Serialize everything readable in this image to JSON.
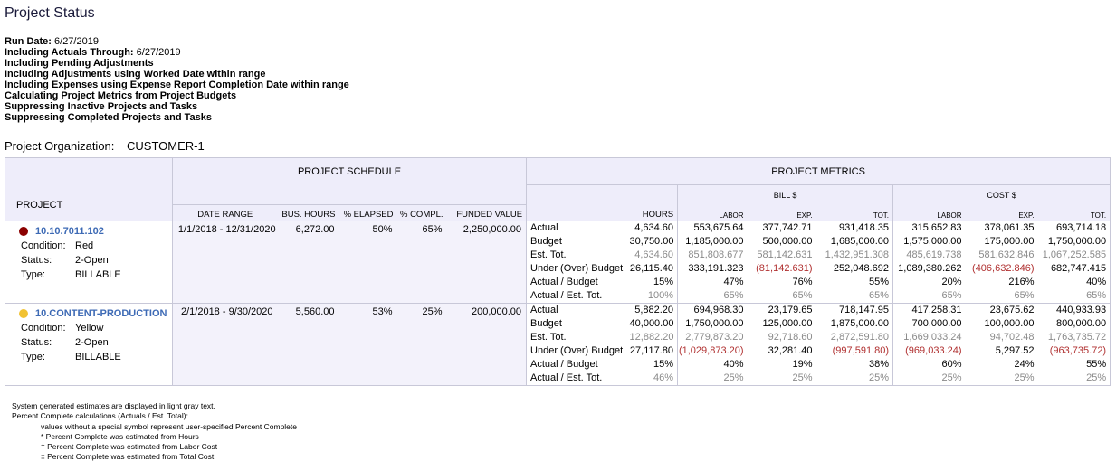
{
  "title": "Project Status",
  "params": [
    {
      "label": "Run Date:",
      "value": "6/27/2019"
    },
    {
      "label": "Including Actuals Through:",
      "value": "6/27/2019"
    },
    {
      "label": "Including Pending Adjustments",
      "value": ""
    },
    {
      "label": "Including Adjustments using Worked Date within range",
      "value": ""
    },
    {
      "label": "Including Expenses using Expense Report Completion Date within range",
      "value": ""
    },
    {
      "label": "Calculating Project Metrics from Project Budgets",
      "value": ""
    },
    {
      "label": "Suppressing Inactive Projects and Tasks",
      "value": ""
    },
    {
      "label": "Suppressing Completed Projects and Tasks",
      "value": ""
    }
  ],
  "org": {
    "label": "Project Organization:",
    "value": "CUSTOMER-1"
  },
  "headers": {
    "project": "PROJECT",
    "schedule": "PROJECT SCHEDULE",
    "metrics": "PROJECT METRICS",
    "bill": "BILL $",
    "cost": "COST $",
    "date_range": "DATE RANGE",
    "bus_hours": "BUS. HOURS",
    "pct_elapsed": "% ELAPSED",
    "pct_compl": "% COMPL.",
    "funded_value": "FUNDED VALUE",
    "hours": "HOURS",
    "labor": "LABOR",
    "exp": "EXP.",
    "tot": "TOT."
  },
  "metric_labels": [
    "Actual",
    "Budget",
    "Est. Tot.",
    "Under (Over) Budget",
    "Actual / Budget",
    "Actual / Est. Tot."
  ],
  "projects": [
    {
      "id": "10.10.7011.102",
      "status_color": "#8b0000",
      "fields": [
        {
          "k": "Condition:",
          "v": "Red"
        },
        {
          "k": "Status:",
          "v": "2-Open"
        },
        {
          "k": "Type:",
          "v": "BILLABLE"
        }
      ],
      "date_range": "1/1/2018 - 12/31/2020",
      "bus_hours": "6,272.00",
      "pct_elapsed": "50%",
      "pct_compl": "65%",
      "funded_value": "2,250,000.00",
      "hours": [
        "4,634.60",
        "30,750.00",
        "4,634.60",
        "26,115.40",
        "15%",
        "100%"
      ],
      "bill_labor": [
        "553,675.64",
        "1,185,000.00",
        "851,808.677",
        "333,191.323",
        "47%",
        "65%"
      ],
      "bill_exp": [
        "377,742.71",
        "500,000.00",
        "581,142.631",
        "(81,142.631)",
        "76%",
        "65%"
      ],
      "bill_tot": [
        "931,418.35",
        "1,685,000.00",
        "1,432,951.308",
        "252,048.692",
        "55%",
        "65%"
      ],
      "cost_labor": [
        "315,652.83",
        "1,575,000.00",
        "485,619.738",
        "1,089,380.262",
        "20%",
        "65%"
      ],
      "cost_exp": [
        "378,061.35",
        "175,000.00",
        "581,632.846",
        "(406,632.846)",
        "216%",
        "65%"
      ],
      "cost_tot": [
        "693,714.18",
        "1,750,000.00",
        "1,067,252.585",
        "682,747.415",
        "40%",
        "65%"
      ],
      "gray": {
        "hours": [
          2,
          5
        ],
        "bill_labor": [
          2,
          5
        ],
        "bill_exp": [
          2,
          5
        ],
        "bill_tot": [
          2,
          5
        ],
        "cost_labor": [
          2,
          5
        ],
        "cost_exp": [
          2,
          5
        ],
        "cost_tot": [
          2,
          5
        ]
      },
      "neg": {
        "bill_exp": [
          3
        ],
        "cost_exp": [
          3
        ]
      }
    },
    {
      "id": "10.CONTENT-PRODUCTION",
      "status_color": "#f1c232",
      "fields": [
        {
          "k": "Condition:",
          "v": "Yellow"
        },
        {
          "k": "Status:",
          "v": "2-Open"
        },
        {
          "k": "Type:",
          "v": "BILLABLE"
        }
      ],
      "date_range": "2/1/2018 - 9/30/2020",
      "bus_hours": "5,560.00",
      "pct_elapsed": "53%",
      "pct_compl": "25%",
      "funded_value": "200,000.00",
      "hours": [
        "5,882.20",
        "40,000.00",
        "12,882.20",
        "27,117.80",
        "15%",
        "46%"
      ],
      "bill_labor": [
        "694,968.30",
        "1,750,000.00",
        "2,779,873.20",
        "(1,029,873.20)",
        "40%",
        "25%"
      ],
      "bill_exp": [
        "23,179.65",
        "125,000.00",
        "92,718.60",
        "32,281.40",
        "19%",
        "25%"
      ],
      "bill_tot": [
        "718,147.95",
        "1,875,000.00",
        "2,872,591.80",
        "(997,591.80)",
        "38%",
        "25%"
      ],
      "cost_labor": [
        "417,258.31",
        "700,000.00",
        "1,669,033.24",
        "(969,033.24)",
        "60%",
        "25%"
      ],
      "cost_exp": [
        "23,675.62",
        "100,000.00",
        "94,702.48",
        "5,297.52",
        "24%",
        "25%"
      ],
      "cost_tot": [
        "440,933.93",
        "800,000.00",
        "1,763,735.72",
        "(963,735.72)",
        "55%",
        "25%"
      ],
      "gray": {
        "hours": [
          2,
          5
        ],
        "bill_labor": [
          2,
          5
        ],
        "bill_exp": [
          2,
          5
        ],
        "bill_tot": [
          2,
          5
        ],
        "cost_labor": [
          2,
          5
        ],
        "cost_exp": [
          2,
          5
        ],
        "cost_tot": [
          2,
          5
        ]
      },
      "neg": {
        "bill_labor": [
          3
        ],
        "bill_tot": [
          3
        ],
        "cost_labor": [
          3
        ],
        "cost_tot": [
          3
        ]
      }
    }
  ],
  "footnotes": {
    "lines": [
      "System generated estimates are displayed in light gray text.",
      "Percent Complete calculations (Actuals / Est. Total):"
    ],
    "indented": [
      "values without a special symbol represent user-specified Percent Complete",
      "* Percent Complete was estimated from Hours",
      "† Percent Complete was estimated from Labor Cost",
      "‡ Percent Complete was estimated from Total Cost"
    ]
  }
}
